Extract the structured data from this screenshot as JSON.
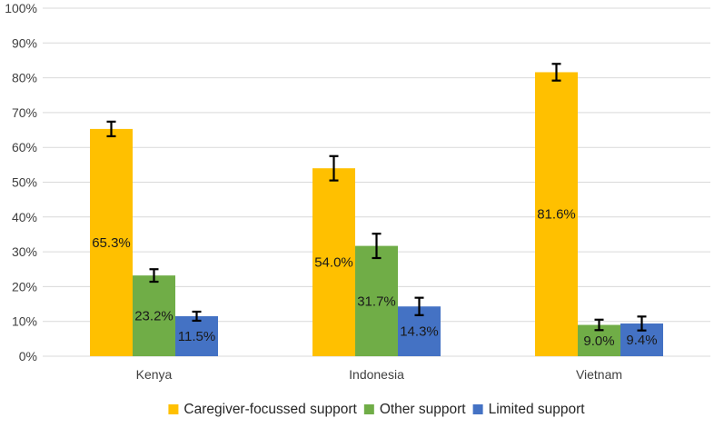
{
  "chart_data": {
    "type": "bar",
    "title": "",
    "xlabel": "",
    "ylabel": "",
    "categories": [
      "Kenya",
      "Indonesia",
      "Vietnam"
    ],
    "ylim": [
      0,
      100
    ],
    "y_ticks": [
      "0%",
      "10%",
      "20%",
      "30%",
      "40%",
      "50%",
      "60%",
      "70%",
      "80%",
      "90%",
      "100%"
    ],
    "grid": true,
    "legend_position": "bottom",
    "series": [
      {
        "name": "Caregiver-focussed support",
        "color": "#FFC000",
        "values": [
          65.3,
          54.0,
          81.6
        ],
        "labels": [
          "65.3%",
          "54.0%",
          "81.6%"
        ],
        "error": [
          [
            63.2,
            67.4
          ],
          [
            50.5,
            57.5
          ],
          [
            79.2,
            84.0
          ]
        ]
      },
      {
        "name": "Other support",
        "color": "#70AD47",
        "values": [
          23.2,
          31.7,
          9.0
        ],
        "labels": [
          "23.2%",
          "31.7%",
          "9.0%"
        ],
        "error": [
          [
            21.4,
            25.0
          ],
          [
            28.2,
            35.2
          ],
          [
            7.5,
            10.5
          ]
        ]
      },
      {
        "name": "Limited support",
        "color": "#4472C4",
        "values": [
          11.5,
          14.3,
          9.4
        ],
        "labels": [
          "11.5%",
          "14.3%",
          "9.4%"
        ],
        "error": [
          [
            10.2,
            12.8
          ],
          [
            11.8,
            16.8
          ],
          [
            7.4,
            11.4
          ]
        ]
      }
    ]
  }
}
